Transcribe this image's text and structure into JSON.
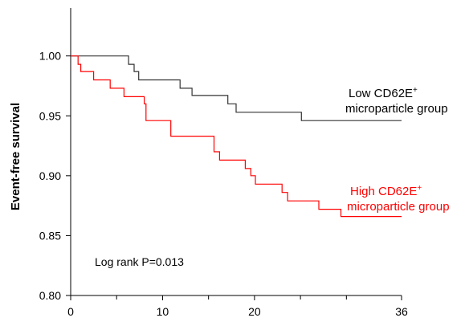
{
  "chart_data": {
    "type": "line",
    "title": "",
    "xlabel": "",
    "ylabel": "Event-free survival",
    "xlim": [
      0,
      36
    ],
    "ylim": [
      0.8,
      1.04
    ],
    "xticks": [
      0,
      10,
      20,
      36
    ],
    "xtick_minor": [
      5,
      15,
      25,
      30
    ],
    "yticks": [
      "0.80",
      "0.85",
      "0.90",
      "0.95",
      "1.00"
    ],
    "ytick_values": [
      0.8,
      0.85,
      0.9,
      0.95,
      1.0
    ],
    "grid": false,
    "annotation": "Log rank P=0.013",
    "series": [
      {
        "name": "Low CD62E⁺ microparticle group",
        "label_line1": "Low CD62E",
        "label_sup": "+",
        "label_line2": "microparticle group",
        "color": "#333333",
        "step": true,
        "points": [
          [
            0,
            1.0
          ],
          [
            6.3,
            1.0
          ],
          [
            6.3,
            0.993
          ],
          [
            6.9,
            0.993
          ],
          [
            6.9,
            0.987
          ],
          [
            7.4,
            0.987
          ],
          [
            7.4,
            0.98
          ],
          [
            11.9,
            0.98
          ],
          [
            11.9,
            0.973
          ],
          [
            13.2,
            0.973
          ],
          [
            13.2,
            0.967
          ],
          [
            17.1,
            0.967
          ],
          [
            17.1,
            0.96
          ],
          [
            18.0,
            0.96
          ],
          [
            18.0,
            0.953
          ],
          [
            25.1,
            0.953
          ],
          [
            25.1,
            0.946
          ],
          [
            36,
            0.946
          ]
        ]
      },
      {
        "name": "High CD62E⁺ microparticle group",
        "label_line1": "High CD62E",
        "label_sup": "+",
        "label_line2": "microparticle group",
        "color": "#ff0000",
        "step": true,
        "points": [
          [
            0,
            1.0
          ],
          [
            0.8,
            1.0
          ],
          [
            0.8,
            0.993
          ],
          [
            1.1,
            0.993
          ],
          [
            1.1,
            0.987
          ],
          [
            2.5,
            0.987
          ],
          [
            2.5,
            0.98
          ],
          [
            4.3,
            0.98
          ],
          [
            4.3,
            0.973
          ],
          [
            5.8,
            0.973
          ],
          [
            5.8,
            0.966
          ],
          [
            8.0,
            0.966
          ],
          [
            8.0,
            0.96
          ],
          [
            8.2,
            0.96
          ],
          [
            8.2,
            0.946
          ],
          [
            10.9,
            0.946
          ],
          [
            10.9,
            0.933
          ],
          [
            15.6,
            0.933
          ],
          [
            15.6,
            0.92
          ],
          [
            16.2,
            0.92
          ],
          [
            16.2,
            0.913
          ],
          [
            19.0,
            0.913
          ],
          [
            19.0,
            0.906
          ],
          [
            19.6,
            0.906
          ],
          [
            19.6,
            0.9
          ],
          [
            20.1,
            0.9
          ],
          [
            20.1,
            0.893
          ],
          [
            23.0,
            0.893
          ],
          [
            23.0,
            0.886
          ],
          [
            23.6,
            0.886
          ],
          [
            23.6,
            0.879
          ],
          [
            27.0,
            0.879
          ],
          [
            27.0,
            0.872
          ],
          [
            29.4,
            0.872
          ],
          [
            29.4,
            0.866
          ],
          [
            36,
            0.866
          ]
        ]
      }
    ]
  }
}
